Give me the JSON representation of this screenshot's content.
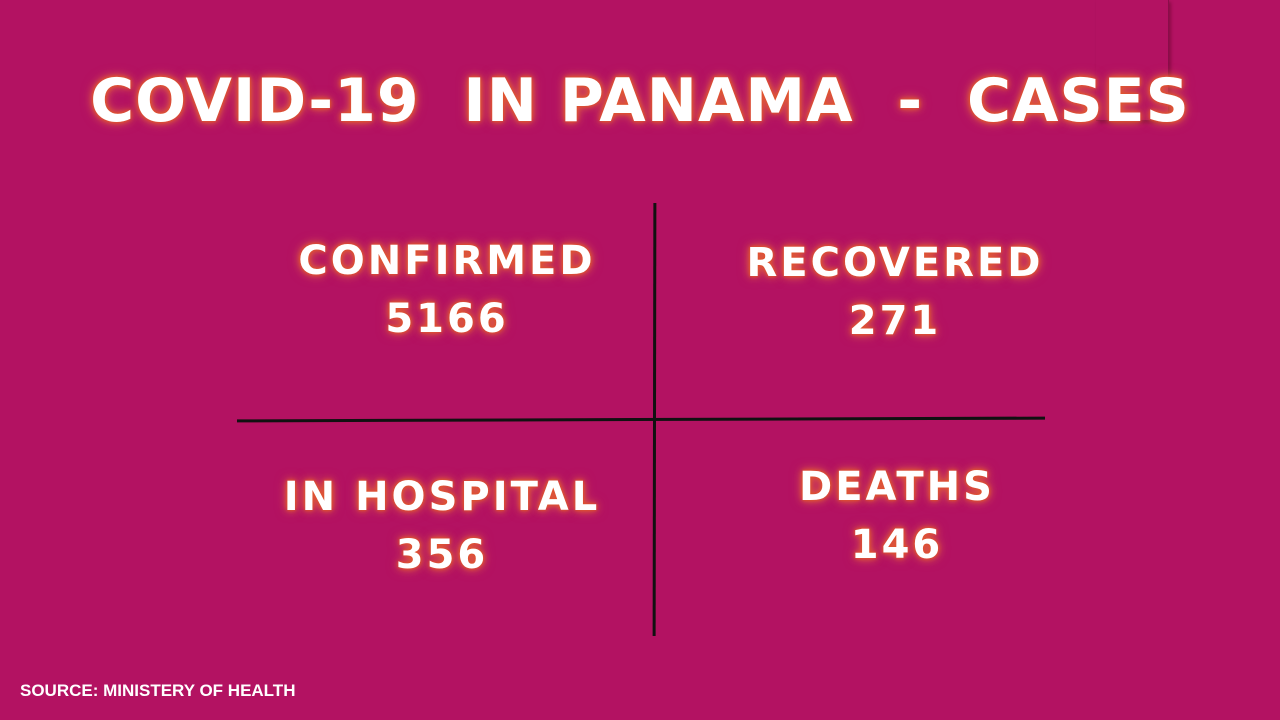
{
  "title": "COVID-19  IN PANAMA  -  CASES",
  "quadrants": [
    {
      "label": "CONFIRMED",
      "value": "5166"
    },
    {
      "label": "RECOVERED",
      "value": "271"
    },
    {
      "label": "IN HOSPITAL",
      "value": "356"
    },
    {
      "label": "DEATHS",
      "value": "146"
    }
  ],
  "source": "SOURCE: MINISTERY OF HEALTH",
  "colors": {
    "background": "#b31262",
    "text": "#ffffff",
    "glow": "#e0502a",
    "lines": "#111111"
  }
}
